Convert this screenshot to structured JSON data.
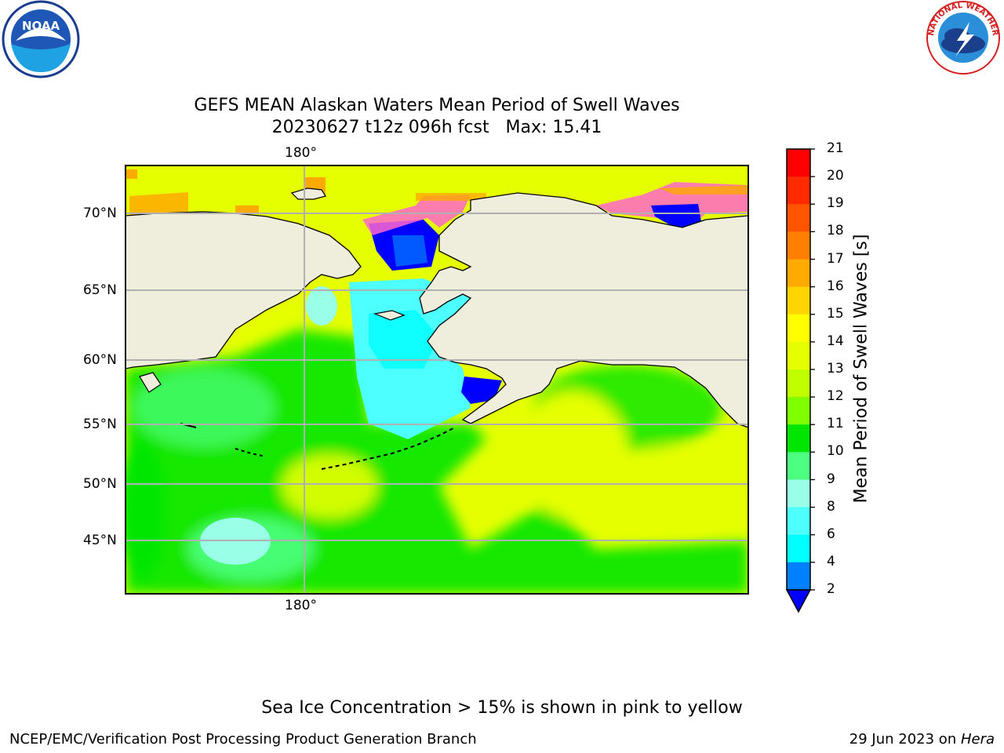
{
  "title": {
    "line1": "GEFS MEAN Alaskan Waters Mean Period of Swell Waves",
    "line2": "20230627 t12z 096h fcst   Max: 15.41"
  },
  "map": {
    "lon_label_top": "180°",
    "lon_label_bottom": "180°",
    "lat_labels": [
      "70°N",
      "65°N",
      "60°N",
      "55°N",
      "50°N",
      "45°N"
    ]
  },
  "colorbar": {
    "label": "Mean Period of Swell Waves [s]",
    "ticks": [
      "21",
      "20",
      "19",
      "18",
      "17",
      "16",
      "15",
      "14",
      "13",
      "12",
      "11",
      "10",
      "9",
      "8",
      "6",
      "4",
      "2"
    ],
    "colors": [
      "#ff0000",
      "#ff2a00",
      "#ff5500",
      "#ff7f00",
      "#ffaa00",
      "#ffd500",
      "#ffff00",
      "#e5ff00",
      "#bfff00",
      "#80ff00",
      "#00e600",
      "#4dff80",
      "#99ffe6",
      "#4dffff",
      "#00ffff",
      "#0080ff",
      "#0000ff"
    ]
  },
  "footer": {
    "note": "Sea Ice Concentration > 15% is shown in pink to yellow",
    "credit": "NCEP/EMC/Verification Post Processing Product Generation Branch",
    "date": "29 Jun 2023 on ",
    "machine": "Hera"
  },
  "logos": {
    "left": "NOAA",
    "right": "NATIONAL WEATHER SERVICE"
  }
}
